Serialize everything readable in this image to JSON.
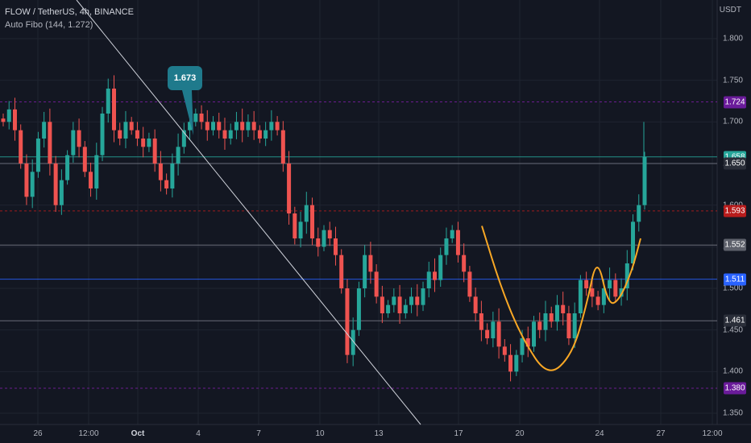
{
  "header": {
    "symbol_line": "FLOW / TetherUS, 4h, BINANCE",
    "indicator_line": "Auto Fibo (144, 1.272)"
  },
  "price_scale": {
    "unit": "USDT",
    "ticks": [
      "1.800",
      "1.750",
      "1.700",
      "1.650",
      "1.600",
      "1.550",
      "1.500",
      "1.450",
      "1.400",
      "1.350"
    ]
  },
  "time_axis": {
    "ticks": [
      {
        "label": "26",
        "bold": false
      },
      {
        "label": "12:00",
        "bold": false
      },
      {
        "label": "Oct",
        "bold": true
      },
      {
        "label": "4",
        "bold": false
      },
      {
        "label": "7",
        "bold": false
      },
      {
        "label": "10",
        "bold": false
      },
      {
        "label": "13",
        "bold": false
      },
      {
        "label": "17",
        "bold": false
      },
      {
        "label": "20",
        "bold": false
      },
      {
        "label": "24",
        "bold": false
      },
      {
        "label": "27",
        "bold": false
      },
      {
        "label": "12:00",
        "bold": false
      }
    ]
  },
  "price_badges": [
    {
      "label": "1.724",
      "value": 1.724,
      "bg": "#6a1b9a",
      "color": "#ffffff"
    },
    {
      "label": "1.658",
      "value": 1.658,
      "bg": "#26a69a",
      "color": "#ffffff"
    },
    {
      "label": "1.650",
      "value": 1.65,
      "bg": "#2a2e39",
      "color": "#ffffff"
    },
    {
      "label": "1.593",
      "value": 1.593,
      "bg": "#b71c1c",
      "color": "#ffffff"
    },
    {
      "label": "1.552",
      "value": 1.552,
      "bg": "#5d606b",
      "color": "#ffffff"
    },
    {
      "label": "1.511",
      "value": 1.511,
      "bg": "#2962ff",
      "color": "#ffffff"
    },
    {
      "label": "1.461",
      "value": 1.461,
      "bg": "#2a2e39",
      "color": "#ffffff"
    },
    {
      "label": "1.380",
      "value": 1.38,
      "bg": "#6a1b9a",
      "color": "#ffffff"
    }
  ],
  "callout": {
    "label": "1.673"
  },
  "colors": {
    "background": "#131722",
    "up": "#26a69a",
    "down": "#ef5350",
    "grid": "#1f2430",
    "trendline": "#d1d4dc",
    "pattern": "#f9a825"
  },
  "chart_data": {
    "type": "candlestick",
    "symbol": "FLOW / TetherUS",
    "interval": "4h",
    "exchange": "BINANCE",
    "indicator": "Auto Fibo (144, 1.272)",
    "ylim": [
      1.33,
      1.84
    ],
    "fib_levels": [
      {
        "value": 1.724,
        "color": "#7b1fa2",
        "style": "dashed"
      },
      {
        "value": 1.658,
        "color": "#26a69a",
        "style": "solid"
      },
      {
        "value": 1.65,
        "color": "#787b86",
        "style": "solid"
      },
      {
        "value": 1.593,
        "color": "#b71c1c",
        "style": "dashed"
      },
      {
        "value": 1.552,
        "color": "#787b86",
        "style": "solid"
      },
      {
        "value": 1.511,
        "color": "#2962ff",
        "style": "solid"
      },
      {
        "value": 1.461,
        "color": "#787b86",
        "style": "solid"
      },
      {
        "value": 1.38,
        "color": "#7b1fa2",
        "style": "dashed"
      }
    ],
    "last_price": 1.658,
    "price_path": [
      1.7,
      1.715,
      1.69,
      1.65,
      1.61,
      1.64,
      1.68,
      1.7,
      1.65,
      1.6,
      1.63,
      1.66,
      1.69,
      1.67,
      1.64,
      1.62,
      1.66,
      1.71,
      1.74,
      1.69,
      1.68,
      1.7,
      1.69,
      1.68,
      1.67,
      1.68,
      1.65,
      1.63,
      1.62,
      1.65,
      1.67,
      1.69,
      1.7,
      1.71,
      1.7,
      1.69,
      1.7,
      1.69,
      1.68,
      1.69,
      1.7,
      1.69,
      1.7,
      1.69,
      1.68,
      1.69,
      1.7,
      1.69,
      1.65,
      1.59,
      1.56,
      1.58,
      1.6,
      1.56,
      1.55,
      1.57,
      1.56,
      1.54,
      1.5,
      1.42,
      1.45,
      1.5,
      1.54,
      1.52,
      1.49,
      1.47,
      1.48,
      1.49,
      1.47,
      1.48,
      1.49,
      1.48,
      1.5,
      1.52,
      1.51,
      1.54,
      1.56,
      1.57,
      1.54,
      1.52,
      1.49,
      1.47,
      1.45,
      1.44,
      1.46,
      1.43,
      1.42,
      1.4,
      1.42,
      1.44,
      1.43,
      1.46,
      1.45,
      1.47,
      1.46,
      1.48,
      1.47,
      1.44,
      1.47,
      1.51,
      1.5,
      1.49,
      1.48,
      1.5,
      1.51,
      1.49,
      1.5,
      1.53,
      1.58,
      1.6,
      1.658
    ],
    "annotations": [
      {
        "type": "trendline",
        "from": {
          "x_date": "Sep 23",
          "y": 1.85
        },
        "to": {
          "x_date": "Oct 15",
          "y": 1.33
        }
      },
      {
        "type": "callout",
        "label": "1.673"
      },
      {
        "type": "pattern_outline",
        "shape": "cup-and-handle",
        "points": [
          1.575,
          1.5,
          1.44,
          1.393,
          1.42,
          1.48,
          1.54,
          1.48,
          1.485,
          1.52,
          1.56
        ]
      }
    ]
  }
}
